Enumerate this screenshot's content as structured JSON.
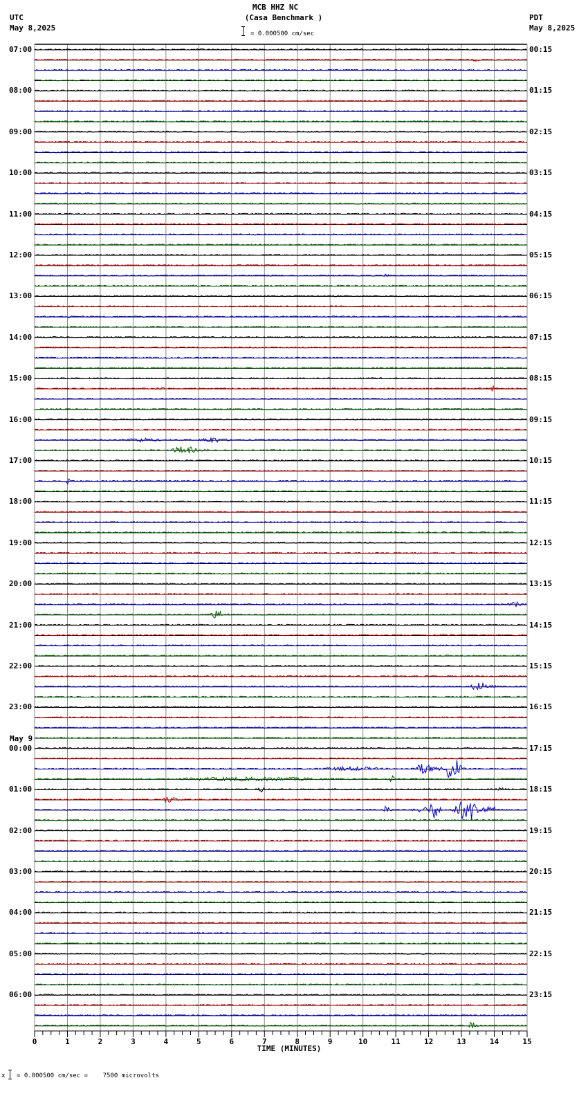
{
  "header": {
    "station": "MCB HHZ NC",
    "site": "(Casa Benchmark )",
    "left_tz": "UTC",
    "left_date": "May 8,2025",
    "right_tz": "PDT",
    "right_date": "May 8,2025",
    "scale_text": "= 0.000500 cm/sec"
  },
  "footer": {
    "scale_text": "= 0.000500 cm/sec =    7500 microvolts",
    "prefix": "x"
  },
  "colors": {
    "trace_cycle": [
      "#000000",
      "#cc0000",
      "#0000cc",
      "#006600"
    ],
    "grid": "#888888",
    "frame": "#000000"
  },
  "chart_data": {
    "type": "line",
    "title": "MCB HHZ NC (Casa Benchmark )",
    "subtitle": "= 0.000500 cm/sec",
    "xlabel": "TIME (MINUTES)",
    "ylabel": "",
    "xlim": [
      0,
      15
    ],
    "x_ticks": [
      "0",
      "1",
      "2",
      "3",
      "4",
      "5",
      "6",
      "7",
      "8",
      "9",
      "10",
      "11",
      "12",
      "13",
      "14",
      "15"
    ],
    "traces_per_hour": 4,
    "trace_count": 96,
    "left_labels": [
      {
        "row": 0,
        "text": "07:00"
      },
      {
        "row": 4,
        "text": "08:00"
      },
      {
        "row": 8,
        "text": "09:00"
      },
      {
        "row": 12,
        "text": "10:00"
      },
      {
        "row": 16,
        "text": "11:00"
      },
      {
        "row": 20,
        "text": "12:00"
      },
      {
        "row": 24,
        "text": "13:00"
      },
      {
        "row": 28,
        "text": "14:00"
      },
      {
        "row": 32,
        "text": "15:00"
      },
      {
        "row": 36,
        "text": "16:00"
      },
      {
        "row": 40,
        "text": "17:00"
      },
      {
        "row": 44,
        "text": "18:00"
      },
      {
        "row": 48,
        "text": "19:00"
      },
      {
        "row": 52,
        "text": "20:00"
      },
      {
        "row": 56,
        "text": "21:00"
      },
      {
        "row": 60,
        "text": "22:00"
      },
      {
        "row": 64,
        "text": "23:00"
      },
      {
        "row": 68,
        "text": "00:00",
        "date": "May 9"
      },
      {
        "row": 72,
        "text": "01:00"
      },
      {
        "row": 76,
        "text": "02:00"
      },
      {
        "row": 80,
        "text": "03:00"
      },
      {
        "row": 84,
        "text": "04:00"
      },
      {
        "row": 88,
        "text": "05:00"
      },
      {
        "row": 92,
        "text": "06:00"
      }
    ],
    "right_labels": [
      {
        "row": 0,
        "text": "00:15"
      },
      {
        "row": 4,
        "text": "01:15"
      },
      {
        "row": 8,
        "text": "02:15"
      },
      {
        "row": 12,
        "text": "03:15"
      },
      {
        "row": 16,
        "text": "04:15"
      },
      {
        "row": 20,
        "text": "05:15"
      },
      {
        "row": 24,
        "text": "06:15"
      },
      {
        "row": 28,
        "text": "07:15"
      },
      {
        "row": 32,
        "text": "08:15"
      },
      {
        "row": 36,
        "text": "09:15"
      },
      {
        "row": 40,
        "text": "10:15"
      },
      {
        "row": 44,
        "text": "11:15"
      },
      {
        "row": 48,
        "text": "12:15"
      },
      {
        "row": 52,
        "text": "13:15"
      },
      {
        "row": 56,
        "text": "14:15"
      },
      {
        "row": 60,
        "text": "15:15"
      },
      {
        "row": 64,
        "text": "16:15"
      },
      {
        "row": 68,
        "text": "17:15"
      },
      {
        "row": 72,
        "text": "18:15"
      },
      {
        "row": 76,
        "text": "19:15"
      },
      {
        "row": 80,
        "text": "20:15"
      },
      {
        "row": 84,
        "text": "21:15"
      },
      {
        "row": 88,
        "text": "22:15"
      },
      {
        "row": 92,
        "text": "23:15"
      }
    ],
    "events": [
      {
        "row": 1,
        "minute": 13.2,
        "duration": 0.6,
        "amp": 2
      },
      {
        "row": 3,
        "minute": 8.4,
        "duration": 0.3,
        "amp": 2
      },
      {
        "row": 22,
        "minute": 10.6,
        "duration": 0.3,
        "amp": 3
      },
      {
        "row": 26,
        "minute": 1.0,
        "duration": 0.2,
        "amp": 3
      },
      {
        "row": 33,
        "minute": 13.9,
        "duration": 0.2,
        "amp": 6
      },
      {
        "row": 33,
        "minute": 3.5,
        "duration": 0.8,
        "amp": 2
      },
      {
        "row": 37,
        "minute": 12.8,
        "duration": 0.8,
        "amp": 2
      },
      {
        "row": 38,
        "minute": 2.5,
        "duration": 2.0,
        "amp": 3
      },
      {
        "row": 38,
        "minute": 5.0,
        "duration": 1.0,
        "amp": 5
      },
      {
        "row": 39,
        "minute": 4.1,
        "duration": 1.2,
        "amp": 6
      },
      {
        "row": 42,
        "minute": 0.95,
        "duration": 0.2,
        "amp": 6
      },
      {
        "row": 54,
        "minute": 14.4,
        "duration": 0.6,
        "amp": 4
      },
      {
        "row": 55,
        "minute": 5.3,
        "duration": 0.7,
        "amp": 6
      },
      {
        "row": 57,
        "minute": 12.0,
        "duration": 1.2,
        "amp": 2
      },
      {
        "row": 62,
        "minute": 13.2,
        "duration": 0.9,
        "amp": 6
      },
      {
        "row": 70,
        "minute": 8.5,
        "duration": 3.0,
        "amp": 3
      },
      {
        "row": 70,
        "minute": 11.5,
        "duration": 1.0,
        "amp": 8
      },
      {
        "row": 70,
        "minute": 12.5,
        "duration": 0.6,
        "amp": 22
      },
      {
        "row": 71,
        "minute": 3.6,
        "duration": 8.0,
        "amp": 3
      },
      {
        "row": 71,
        "minute": 10.8,
        "duration": 0.2,
        "amp": 7
      },
      {
        "row": 72,
        "minute": 6.8,
        "duration": 0.3,
        "amp": 5
      },
      {
        "row": 72,
        "minute": 14.1,
        "duration": 0.3,
        "amp": 4
      },
      {
        "row": 73,
        "minute": 3.8,
        "duration": 0.8,
        "amp": 5
      },
      {
        "row": 74,
        "minute": 10.6,
        "duration": 0.3,
        "amp": 8
      },
      {
        "row": 74,
        "minute": 11.5,
        "duration": 0.8,
        "amp": 5
      },
      {
        "row": 74,
        "minute": 12.0,
        "duration": 0.4,
        "amp": 14
      },
      {
        "row": 74,
        "minute": 12.7,
        "duration": 1.3,
        "amp": 16
      },
      {
        "row": 95,
        "minute": 13.2,
        "duration": 0.3,
        "amp": 6
      }
    ]
  }
}
